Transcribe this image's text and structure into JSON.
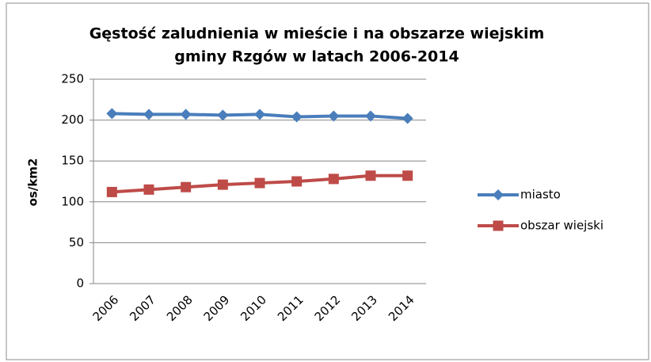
{
  "chart_data": {
    "type": "line",
    "title": [
      "Gęstość zaludnienia w mieście i na obszarze wiejskim",
      "gminy Rzgów w latach 2006-2014"
    ],
    "y_label": "os/km2",
    "categories": [
      "2006",
      "2007",
      "2008",
      "2009",
      "2010",
      "2011",
      "2012",
      "2013",
      "2014"
    ],
    "series": [
      {
        "name": "miasto",
        "color": "#4a7ebb",
        "marker": "diamond",
        "values": [
          208,
          207,
          207,
          206,
          207,
          204,
          205,
          205,
          202
        ]
      },
      {
        "name": "obszar wiejski",
        "color": "#be4b48",
        "marker": "square",
        "values": [
          112,
          115,
          118,
          121,
          123,
          125,
          128,
          132,
          132
        ]
      }
    ],
    "ylim": [
      0,
      250
    ],
    "yticks": [
      0,
      50,
      100,
      150,
      200,
      250
    ],
    "grid": true,
    "legend": "right"
  }
}
